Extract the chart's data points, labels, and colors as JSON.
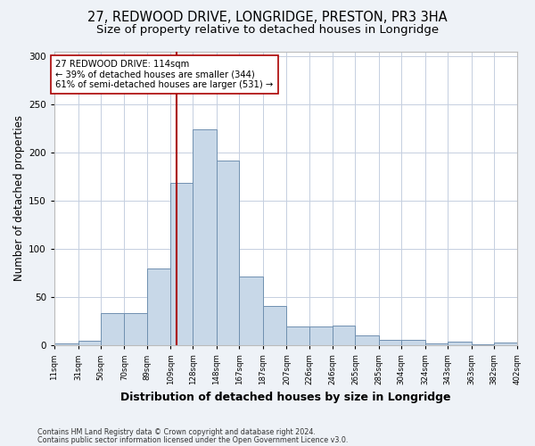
{
  "title1": "27, REDWOOD DRIVE, LONGRIDGE, PRESTON, PR3 3HA",
  "title2": "Size of property relative to detached houses in Longridge",
  "xlabel": "Distribution of detached houses by size in Longridge",
  "ylabel": "Number of detached properties",
  "bar_edges": [
    11,
    31,
    50,
    70,
    89,
    109,
    128,
    148,
    167,
    187,
    207,
    226,
    246,
    265,
    285,
    304,
    324,
    343,
    363,
    382,
    402
  ],
  "bar_heights": [
    2,
    5,
    34,
    34,
    80,
    169,
    224,
    192,
    71,
    41,
    20,
    20,
    21,
    10,
    6,
    6,
    2,
    4,
    1,
    3
  ],
  "bar_color": "#c8d8e8",
  "bar_edgecolor": "#7090b0",
  "vline_x": 114,
  "vline_color": "#aa0000",
  "annotation_line1": "27 REDWOOD DRIVE: 114sqm",
  "annotation_line2": "← 39% of detached houses are smaller (344)",
  "annotation_line3": "61% of semi-detached houses are larger (531) →",
  "annotation_box_color": "white",
  "annotation_box_edgecolor": "#aa0000",
  "ylim": [
    0,
    305
  ],
  "yticks": [
    0,
    50,
    100,
    150,
    200,
    250,
    300
  ],
  "footnote1": "Contains HM Land Registry data © Crown copyright and database right 2024.",
  "footnote2": "Contains public sector information licensed under the Open Government Licence v3.0.",
  "bg_color": "#eef2f7",
  "plot_bg_color": "#ffffff",
  "title1_fontsize": 10.5,
  "title2_fontsize": 9.5,
  "xlabel_fontsize": 9,
  "ylabel_fontsize": 8.5,
  "tick_labels": [
    "11sqm",
    "31sqm",
    "50sqm",
    "70sqm",
    "89sqm",
    "109sqm",
    "128sqm",
    "148sqm",
    "167sqm",
    "187sqm",
    "207sqm",
    "226sqm",
    "246sqm",
    "265sqm",
    "285sqm",
    "304sqm",
    "324sqm",
    "343sqm",
    "363sqm",
    "382sqm",
    "402sqm"
  ]
}
